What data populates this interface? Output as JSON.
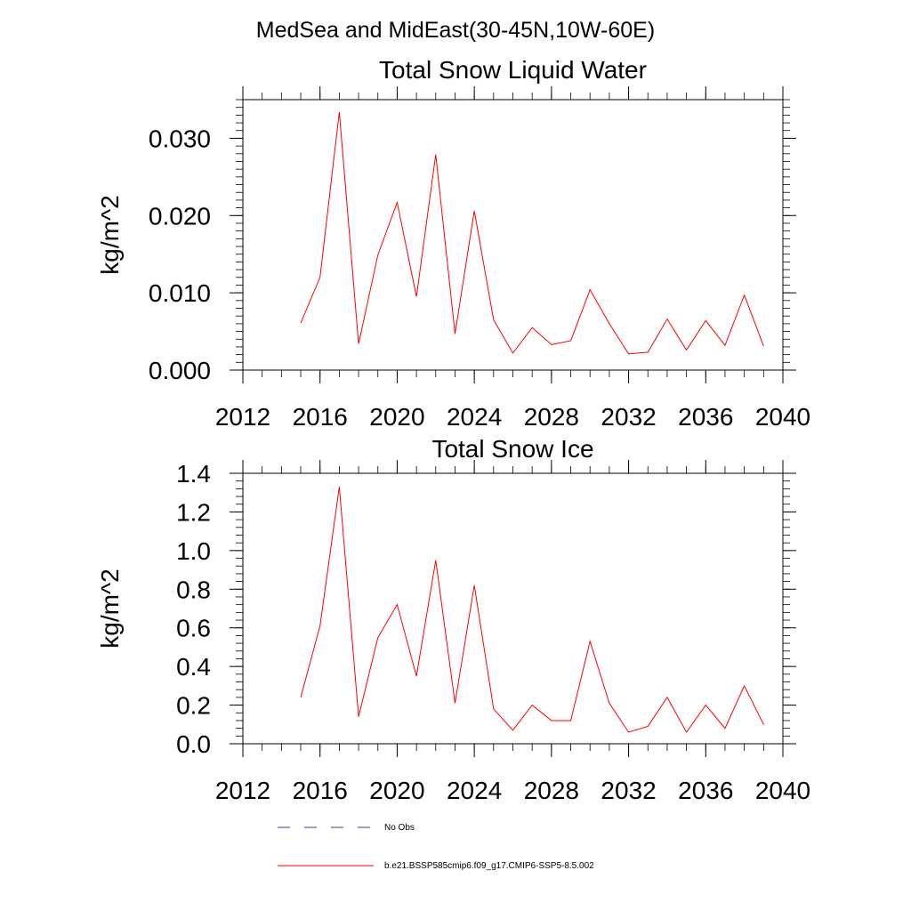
{
  "figure_title": "MedSea and MidEast(30-45N,10W-60E)",
  "legend": {
    "items": [
      {
        "label": "No Obs",
        "color": "#39398a",
        "dash": true
      },
      {
        "label": "b.e21.BSSP585cmip6.f09_g17.CMIP6-SSP5-8.5.002",
        "color": "#ff0000",
        "dash": false
      }
    ]
  },
  "chart_data": [
    {
      "type": "line",
      "title": "Total Snow Liquid Water",
      "xlabel": "",
      "ylabel": "kg/m^2",
      "xlim": [
        2012,
        2040
      ],
      "ylim": [
        0,
        0.035
      ],
      "xticks": [
        2012,
        2016,
        2020,
        2024,
        2028,
        2032,
        2036,
        2040
      ],
      "xtick_labels": [
        "2012",
        "2016",
        "2020",
        "2024",
        "2028",
        "2032",
        "2036",
        "2040"
      ],
      "yticks": [
        0,
        0.01,
        0.02,
        0.03
      ],
      "ytick_labels": [
        "0.000",
        "0.010",
        "0.020",
        "0.030"
      ],
      "yminor_step": 0.001,
      "xminor_step": 1,
      "series": [
        {
          "color": "#ff0000",
          "x": [
            2015,
            2016,
            2017,
            2018,
            2019,
            2020,
            2021,
            2022,
            2023,
            2024,
            2025,
            2026,
            2027,
            2028,
            2029,
            2030,
            2031,
            2032,
            2033,
            2034,
            2035,
            2036,
            2037,
            2038,
            2039
          ],
          "y": [
            0.0061,
            0.012,
            0.0334,
            0.0034,
            0.0149,
            0.0217,
            0.0095,
            0.0279,
            0.0047,
            0.0206,
            0.0065,
            0.0022,
            0.0055,
            0.0033,
            0.0038,
            0.0104,
            0.006,
            0.0021,
            0.0023,
            0.0066,
            0.0026,
            0.0064,
            0.0032,
            0.0097,
            0.0031
          ]
        }
      ]
    },
    {
      "type": "line",
      "title": "Total Snow Ice",
      "xlabel": "",
      "ylabel": "kg/m^2",
      "xlim": [
        2012,
        2040
      ],
      "ylim": [
        0,
        1.4
      ],
      "xticks": [
        2012,
        2016,
        2020,
        2024,
        2028,
        2032,
        2036,
        2040
      ],
      "xtick_labels": [
        "2012",
        "2016",
        "2020",
        "2024",
        "2028",
        "2032",
        "2036",
        "2040"
      ],
      "yticks": [
        0,
        0.2,
        0.4,
        0.6,
        0.8,
        1.0,
        1.2,
        1.4
      ],
      "ytick_labels": [
        "0.0",
        "0.2",
        "0.4",
        "0.6",
        "0.8",
        "1.0",
        "1.2",
        "1.4"
      ],
      "yminor_step": 0.04,
      "xminor_step": 1,
      "series": [
        {
          "color": "#ff0000",
          "x": [
            2015,
            2016,
            2017,
            2018,
            2019,
            2020,
            2021,
            2022,
            2023,
            2024,
            2025,
            2026,
            2027,
            2028,
            2029,
            2030,
            2031,
            2032,
            2033,
            2034,
            2035,
            2036,
            2037,
            2038,
            2039
          ],
          "y": [
            0.24,
            0.61,
            1.33,
            0.14,
            0.55,
            0.72,
            0.35,
            0.95,
            0.21,
            0.82,
            0.18,
            0.07,
            0.2,
            0.12,
            0.12,
            0.53,
            0.21,
            0.06,
            0.09,
            0.24,
            0.06,
            0.2,
            0.08,
            0.3,
            0.1
          ]
        }
      ]
    }
  ]
}
